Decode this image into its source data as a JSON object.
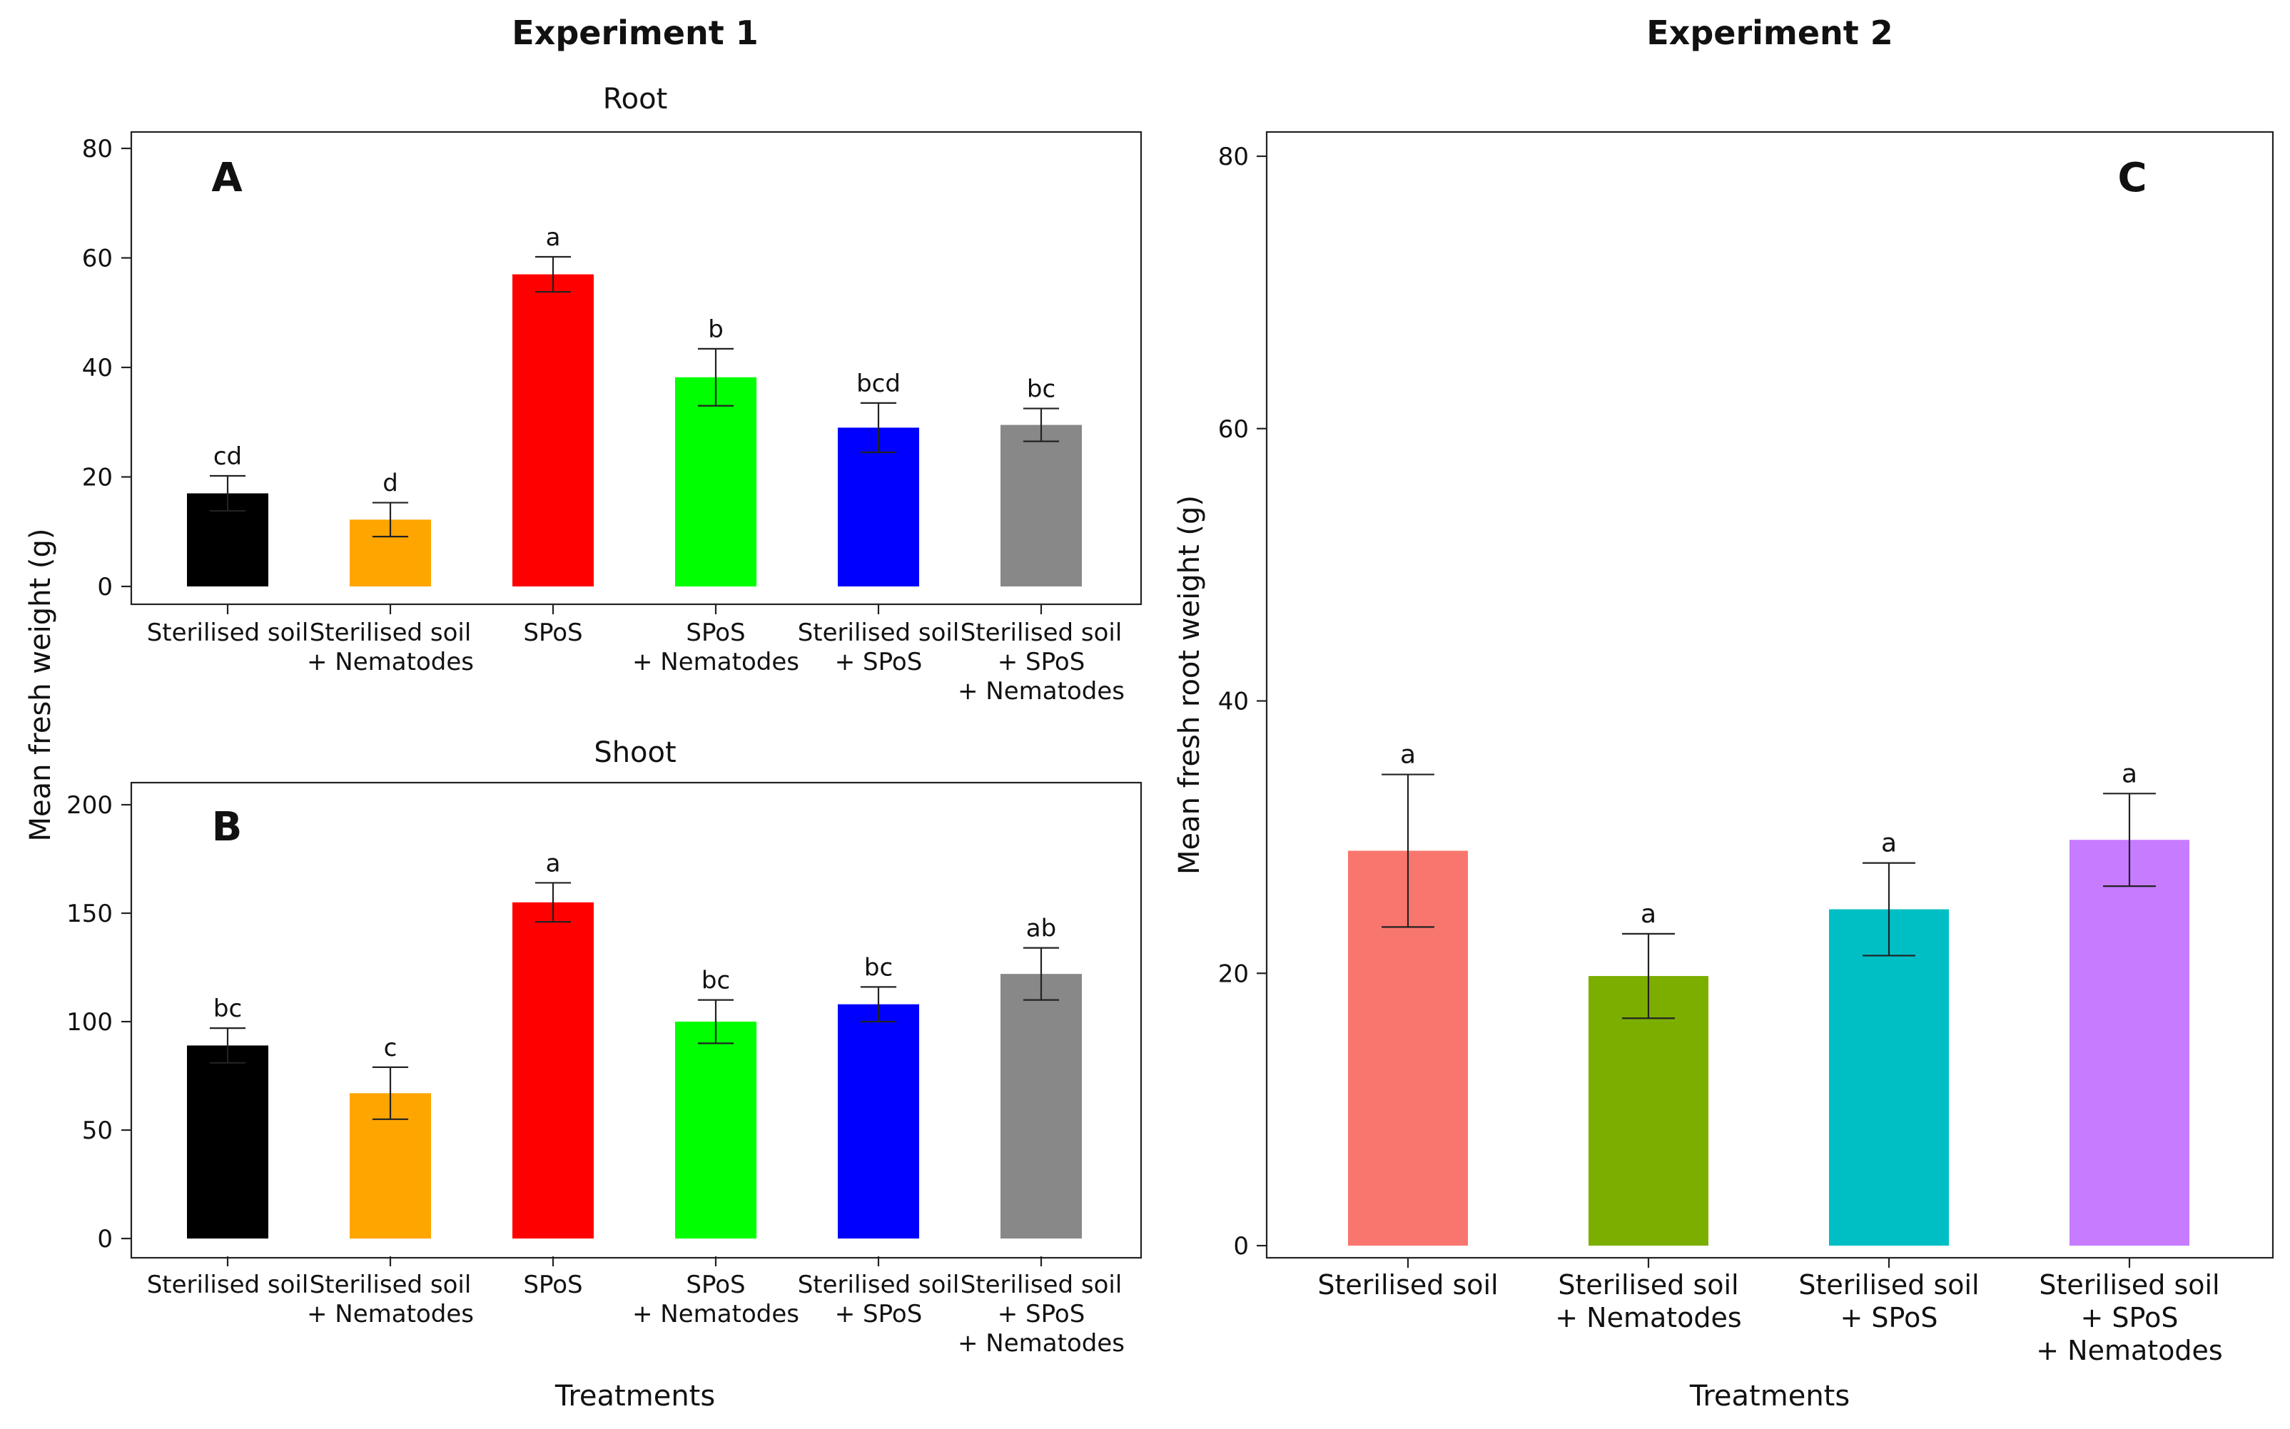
{
  "headings": {
    "experiment_1": "Experiment 1",
    "experiment_2": "Experiment 2"
  },
  "chart_data": [
    {
      "type": "bar",
      "panel": "A",
      "title": "Root",
      "xlabel": "",
      "ylabel": "Mean fresh weight (g)",
      "ylim": [
        0,
        80
      ],
      "yticks": [
        0,
        20,
        40,
        60,
        80
      ],
      "categories": [
        [
          "Sterilised soil"
        ],
        [
          "Sterilised soil",
          "+ Nematodes"
        ],
        [
          "SPoS"
        ],
        [
          "SPoS",
          "+ Nematodes"
        ],
        [
          "Sterilised soil",
          "+ SPoS"
        ],
        [
          "Sterilised soil",
          "+ SPoS",
          "+ Nematodes"
        ]
      ],
      "values": [
        17,
        12.2,
        57,
        38.2,
        29,
        29.5
      ],
      "errors": [
        3.2,
        3.1,
        3.2,
        5.2,
        4.5,
        3
      ],
      "letters": [
        "cd",
        "d",
        "a",
        "b",
        "bcd",
        "bc"
      ],
      "colors": [
        "#000000",
        "#FFA500",
        "#FF0000",
        "#00FF00",
        "#0000FF",
        "#888888"
      ]
    },
    {
      "type": "bar",
      "panel": "B",
      "title": "Shoot",
      "xlabel": "Treatments",
      "ylabel": "Mean fresh weight (g)",
      "ylim": [
        0,
        200
      ],
      "yticks": [
        0,
        50,
        100,
        150,
        200
      ],
      "categories": [
        [
          "Sterilised soil"
        ],
        [
          "Sterilised soil",
          "+ Nematodes"
        ],
        [
          "SPoS"
        ],
        [
          "SPoS",
          "+ Nematodes"
        ],
        [
          "Sterilised soil",
          "+ SPoS"
        ],
        [
          "Sterilised soil",
          "+ SPoS",
          "+ Nematodes"
        ]
      ],
      "values": [
        89,
        67,
        155,
        100,
        108,
        122
      ],
      "errors": [
        8,
        12,
        9,
        10,
        8,
        12
      ],
      "letters": [
        "bc",
        "c",
        "a",
        "bc",
        "bc",
        "ab"
      ],
      "colors": [
        "#000000",
        "#FFA500",
        "#FF0000",
        "#00FF00",
        "#0000FF",
        "#888888"
      ]
    },
    {
      "type": "bar",
      "panel": "C",
      "title": "",
      "xlabel": "Treatments",
      "ylabel": "Mean fresh root weight (g)",
      "ylim": [
        0,
        80
      ],
      "yticks": [
        0,
        20,
        40,
        60,
        80
      ],
      "categories": [
        [
          "Sterilised soil"
        ],
        [
          "Sterilised soil",
          "+ Nematodes"
        ],
        [
          "Sterilised soil",
          "+ SPoS"
        ],
        [
          "Sterilised soil",
          "+ SPoS",
          "+ Nematodes"
        ]
      ],
      "values": [
        29,
        19.8,
        24.7,
        29.8
      ],
      "errors": [
        5.6,
        3.1,
        3.4,
        3.4
      ],
      "letters": [
        "a",
        "a",
        "a",
        "a"
      ],
      "colors": [
        "#F8766D",
        "#7CAE00",
        "#00BFC4",
        "#C77CFF"
      ]
    }
  ]
}
